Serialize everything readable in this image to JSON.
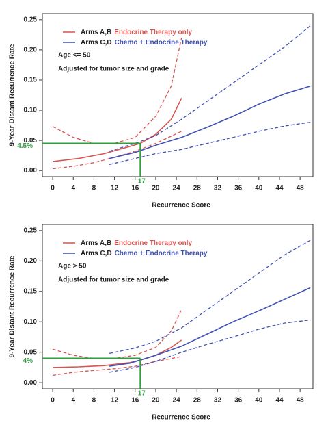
{
  "chart_data": [
    {
      "type": "line",
      "x_label": "Recurrence Score",
      "y_label": "9-Year Distant Recurrence Rate",
      "legend": [
        {
          "group": "Arms A,B",
          "treatment": "Endocrine Therapy only",
          "color": "#d9534f"
        },
        {
          "group": "Arms C,D",
          "treatment": "Chemo + Endocrine Therapy",
          "color": "#3f51b5"
        }
      ],
      "annotations": [
        "Age <= 50",
        "Adjusted for tumor size and grade"
      ],
      "reference": {
        "x": 17,
        "y": 0.045,
        "x_label": "17",
        "y_label": "4.5%",
        "color": "#2e9e3e"
      },
      "xlim": [
        -2,
        50.5
      ],
      "ylim": [
        -0.01,
        0.26
      ],
      "xticks": [
        0,
        4,
        8,
        12,
        16,
        20,
        24,
        28,
        32,
        36,
        40,
        44,
        48
      ],
      "yticks": [
        {
          "value": 0,
          "label": "0.00"
        },
        {
          "value": 0.05,
          "label": "0.05"
        },
        {
          "value": 0.1,
          "label": "0.10"
        },
        {
          "value": 0.15,
          "label": "0.15"
        },
        {
          "value": 0.2,
          "label": "0.20"
        },
        {
          "value": 0.25,
          "label": "0.25"
        }
      ],
      "series": [
        {
          "color": "#d9534f",
          "style": "solid",
          "x": [
            0,
            5,
            10,
            15,
            17,
            20,
            23,
            25
          ],
          "values": [
            0.015,
            0.02,
            0.028,
            0.04,
            0.045,
            0.06,
            0.085,
            0.12
          ]
        },
        {
          "color": "#d9534f",
          "style": "dashed",
          "x": [
            0,
            4,
            8,
            12,
            16,
            20,
            23,
            25
          ],
          "values": [
            0.073,
            0.055,
            0.045,
            0.045,
            0.055,
            0.09,
            0.14,
            0.22
          ]
        },
        {
          "color": "#d9534f",
          "style": "dashed",
          "x": [
            0,
            4,
            8,
            12,
            16,
            20,
            25
          ],
          "values": [
            0.003,
            0.007,
            0.013,
            0.022,
            0.032,
            0.045,
            0.065
          ]
        },
        {
          "color": "#3f51b5",
          "style": "solid",
          "x": [
            11,
            16,
            20,
            25,
            30,
            35,
            40,
            45,
            50
          ],
          "values": [
            0.02,
            0.03,
            0.042,
            0.055,
            0.072,
            0.09,
            0.11,
            0.127,
            0.14
          ]
        },
        {
          "color": "#3f51b5",
          "style": "dashed",
          "x": [
            11,
            16,
            20,
            25,
            30,
            35,
            40,
            45,
            50
          ],
          "values": [
            0.032,
            0.045,
            0.058,
            0.085,
            0.115,
            0.145,
            0.175,
            0.205,
            0.24
          ]
        },
        {
          "color": "#3f51b5",
          "style": "dashed",
          "x": [
            11,
            16,
            20,
            25,
            30,
            35,
            40,
            45,
            50
          ],
          "values": [
            0.01,
            0.02,
            0.028,
            0.035,
            0.045,
            0.055,
            0.065,
            0.074,
            0.08
          ]
        }
      ]
    },
    {
      "type": "line",
      "x_label": "Recurrence Score",
      "y_label": "9-Year Distant Recurrence Rate",
      "legend": [
        {
          "group": "Arms A,B",
          "treatment": "Endocrine Therapy only",
          "color": "#d9534f"
        },
        {
          "group": "Arms C,D",
          "treatment": "Chemo + Endocrine Therapy",
          "color": "#3f51b5"
        }
      ],
      "annotations": [
        "Age > 50",
        "Adjusted for tumor size and grade"
      ],
      "reference": {
        "x": 17,
        "y": 0.04,
        "x_label": "17",
        "y_label": "4%",
        "color": "#2e9e3e"
      },
      "xlim": [
        -2,
        50.5
      ],
      "ylim": [
        -0.01,
        0.26
      ],
      "xticks": [
        0,
        4,
        8,
        12,
        16,
        20,
        24,
        28,
        32,
        36,
        40,
        44,
        48
      ],
      "yticks": [
        {
          "value": 0,
          "label": "0.00"
        },
        {
          "value": 0.05,
          "label": "0.05"
        },
        {
          "value": 0.1,
          "label": "0.10"
        },
        {
          "value": 0.15,
          "label": "0.15"
        },
        {
          "value": 0.2,
          "label": "0.20"
        },
        {
          "value": 0.25,
          "label": "0.25"
        }
      ],
      "series": [
        {
          "color": "#d9534f",
          "style": "solid",
          "x": [
            0,
            5,
            10,
            15,
            17,
            20,
            23,
            25
          ],
          "values": [
            0.025,
            0.026,
            0.028,
            0.033,
            0.037,
            0.045,
            0.058,
            0.07
          ]
        },
        {
          "color": "#d9534f",
          "style": "dashed",
          "x": [
            0,
            4,
            8,
            12,
            16,
            20,
            23,
            25
          ],
          "values": [
            0.055,
            0.045,
            0.04,
            0.04,
            0.045,
            0.058,
            0.085,
            0.12
          ]
        },
        {
          "color": "#d9534f",
          "style": "dashed",
          "x": [
            0,
            4,
            8,
            12,
            16,
            20,
            25
          ],
          "values": [
            0.012,
            0.017,
            0.02,
            0.023,
            0.027,
            0.035,
            0.043
          ]
        },
        {
          "color": "#3f51b5",
          "style": "solid",
          "x": [
            11,
            15,
            20,
            25,
            30,
            35,
            40,
            45,
            50
          ],
          "values": [
            0.027,
            0.032,
            0.045,
            0.06,
            0.08,
            0.1,
            0.118,
            0.137,
            0.156
          ]
        },
        {
          "color": "#3f51b5",
          "style": "dashed",
          "x": [
            11,
            16,
            20,
            25,
            30,
            35,
            40,
            45,
            50
          ],
          "values": [
            0.048,
            0.057,
            0.068,
            0.09,
            0.12,
            0.15,
            0.18,
            0.21,
            0.234
          ]
        },
        {
          "color": "#3f51b5",
          "style": "dashed",
          "x": [
            11,
            16,
            20,
            25,
            30,
            35,
            40,
            45,
            50
          ],
          "values": [
            0.017,
            0.025,
            0.035,
            0.05,
            0.063,
            0.075,
            0.088,
            0.098,
            0.103
          ]
        }
      ]
    }
  ]
}
